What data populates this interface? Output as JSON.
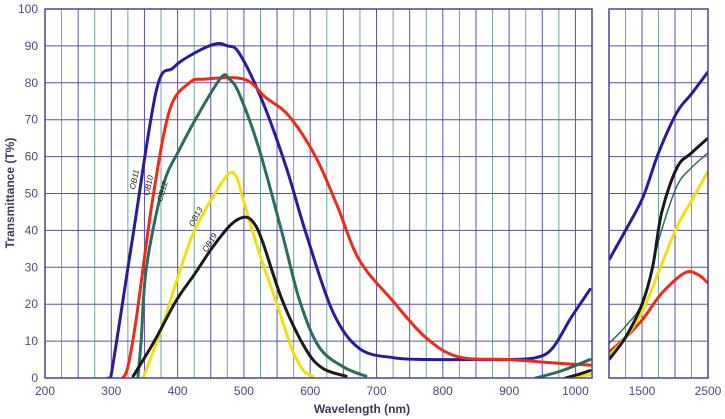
{
  "chart_data": {
    "type": "line",
    "title": "",
    "xlabel": "Wavelength (nm)",
    "ylabel": "Transmittance (T%)",
    "ylim": [
      0,
      100
    ],
    "yticks": [
      0,
      10,
      20,
      30,
      40,
      50,
      60,
      70,
      80,
      90,
      100
    ],
    "grid": true,
    "panels": [
      {
        "xlim": [
          200,
          1025
        ],
        "xticks": [
          200,
          300,
          400,
          500,
          600,
          700,
          800,
          900,
          1000
        ],
        "grid_step": 25
      },
      {
        "xlim": [
          1000,
          2500
        ],
        "xticks": [
          1500,
          2500
        ],
        "grid_step": 250
      }
    ],
    "series": [
      {
        "name": "OB11",
        "color": "#2b1b9c",
        "segments": [
          [
            [
              295,
              0
            ],
            [
              300,
              1
            ],
            [
              333,
              39
            ],
            [
              368,
              78
            ],
            [
              393,
              84
            ],
            [
              420,
              87.5
            ],
            [
              456,
              90.5
            ],
            [
              475,
              90
            ],
            [
              493,
              88
            ],
            [
              528,
              75
            ],
            [
              564,
              57
            ],
            [
              594,
              39
            ],
            [
              634,
              18
            ],
            [
              674,
              8
            ],
            [
              725,
              5.5
            ],
            [
              775,
              5
            ],
            [
              850,
              5
            ],
            [
              900,
              5
            ],
            [
              940,
              5.5
            ],
            [
              965,
              8
            ],
            [
              994,
              16.5
            ],
            [
              1022,
              24
            ]
          ]
        ],
        "nir": [
          [
            1000,
            32
          ],
          [
            1250,
            40
          ],
          [
            1515,
            49
          ],
          [
            1750,
            61
          ],
          [
            2030,
            72
          ],
          [
            2250,
            77
          ],
          [
            2500,
            83
          ]
        ]
      },
      {
        "name": "OB10",
        "color": "#ee2a1a",
        "segments": [
          [
            [
              317,
              0
            ],
            [
              325,
              3
            ],
            [
              338,
              16.5
            ],
            [
              362,
              48
            ],
            [
              388,
              72.6
            ],
            [
              418,
              80
            ],
            [
              440,
              81
            ],
            [
              500,
              81
            ],
            [
              533,
              76
            ],
            [
              568,
              71
            ],
            [
              608,
              60
            ],
            [
              640,
              47
            ],
            [
              674,
              32
            ],
            [
              724,
              21
            ],
            [
              774,
              11
            ],
            [
              824,
              5.7
            ],
            [
              899,
              5
            ],
            [
              974,
              4
            ],
            [
              1022,
              3.5
            ]
          ]
        ],
        "nir": [
          [
            1000,
            7
          ],
          [
            1250,
            11
          ],
          [
            1515,
            16
          ],
          [
            1800,
            23
          ],
          [
            2150,
            28.5
          ],
          [
            2350,
            28
          ],
          [
            2500,
            25.7
          ]
        ]
      },
      {
        "name": "OB12",
        "color": "#2a6e5a",
        "segments": [
          [
            [
              340,
              0
            ],
            [
              345,
              10
            ],
            [
              353,
              30
            ],
            [
              378,
              52
            ],
            [
              403,
              62
            ],
            [
              433,
              72
            ],
            [
              466,
              81.5
            ],
            [
              478,
              81
            ],
            [
              493,
              77
            ],
            [
              523,
              62
            ],
            [
              558,
              39
            ],
            [
              584,
              21
            ],
            [
              613,
              8.5
            ],
            [
              650,
              3
            ],
            [
              684,
              0.5
            ]
          ],
          [
            [
              940,
              0
            ],
            [
              980,
              2
            ],
            [
              1022,
              5
            ]
          ]
        ],
        "nir": [
          [
            1000,
            9.4
          ],
          [
            1250,
            14
          ],
          [
            1515,
            21
          ],
          [
            1780,
            39
          ],
          [
            2030,
            52
          ],
          [
            2250,
            57
          ],
          [
            2500,
            61
          ]
        ]
      },
      {
        "name": "OB13",
        "color": "#f2df10",
        "segments": [
          [
            [
              348,
              0
            ],
            [
              373,
              12
            ],
            [
              398,
              26
            ],
            [
              423,
              39
            ],
            [
              453,
              49
            ],
            [
              478,
              55.5
            ],
            [
              490,
              54
            ],
            [
              498,
              49
            ],
            [
              523,
              34
            ],
            [
              548,
              21
            ],
            [
              573,
              7.6
            ],
            [
              590,
              2
            ],
            [
              604,
              0.5
            ]
          ],
          [
            [
              1000,
              0
            ],
            [
              1022,
              1
            ]
          ]
        ],
        "nir": [
          [
            1000,
            6
          ],
          [
            1250,
            11
          ],
          [
            1515,
            18.4
          ],
          [
            1780,
            30
          ],
          [
            2030,
            41
          ],
          [
            2250,
            48
          ],
          [
            2500,
            56
          ]
        ]
      },
      {
        "name": "OB19",
        "color": "#1b1a1a",
        "segments": [
          [
            [
              333,
              0.5
            ],
            [
              365,
              10
            ],
            [
              398,
              21
            ],
            [
              425,
              28
            ],
            [
              453,
              35.5
            ],
            [
              480,
              41.5
            ],
            [
              501,
              43.6
            ],
            [
              515,
              42
            ],
            [
              528,
              37
            ],
            [
              558,
              21
            ],
            [
              594,
              7.6
            ],
            [
              620,
              2.5
            ],
            [
              654,
              0.5
            ]
          ],
          [
            [
              985,
              0
            ],
            [
              1005,
              1
            ],
            [
              1022,
              2
            ]
          ]
        ],
        "nir": [
          [
            1000,
            5
          ],
          [
            1250,
            11
          ],
          [
            1500,
            20
          ],
          [
            1660,
            30
          ],
          [
            1800,
            45
          ],
          [
            2030,
            57
          ],
          [
            2250,
            61
          ],
          [
            2500,
            65
          ]
        ]
      }
    ],
    "annotations": [
      "OB11",
      "OB10",
      "OB12",
      "OB13",
      "OB19"
    ]
  }
}
